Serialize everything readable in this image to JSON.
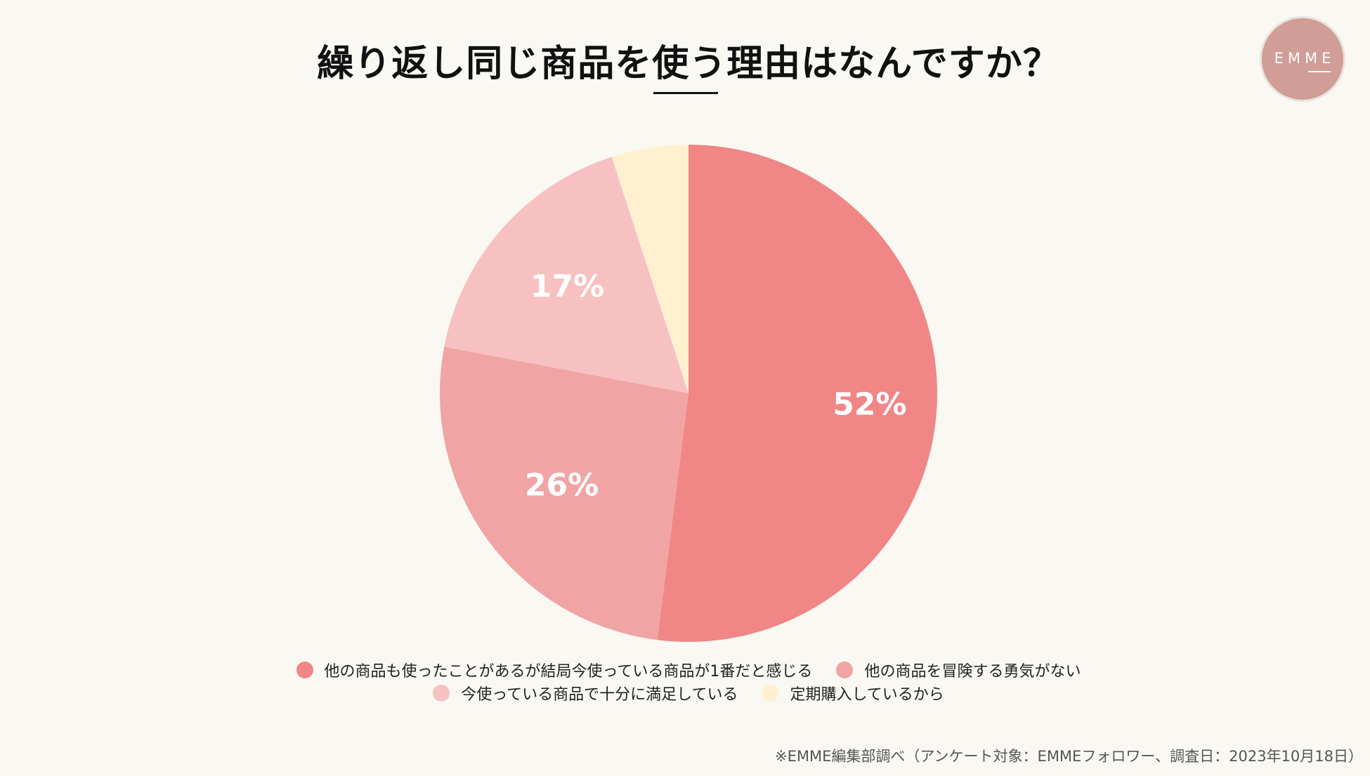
{
  "chart_data": {
    "type": "pie",
    "title": "繰り返し同じ商品を使う理由はなんですか？",
    "slices": [
      {
        "label": "他の商品も使ったことがあるが結局今使っている商品が1番だと感じる",
        "value": 52,
        "value_label": "52%",
        "color": "#f08686"
      },
      {
        "label": "他の商品を冒険する勇気がない",
        "value": 26,
        "value_label": "26%",
        "color": "#f1a4a4"
      },
      {
        "label": "今使っている商品で十分に満足している",
        "value": 17,
        "value_label": "17%",
        "color": "#f7c1c1"
      },
      {
        "label": "定期購入しているから",
        "value": 5,
        "value_label": "",
        "color": "#fff1cf"
      }
    ],
    "start_angle": "12 o'clock",
    "direction": "clockwise",
    "legend_position": "bottom"
  },
  "logo": {
    "text": "EMME",
    "color": "#d09d97"
  },
  "footnote": "※EMME編集部調べ（アンケート対象：EMMEフォロワー、調査日：2023年10月18日）"
}
